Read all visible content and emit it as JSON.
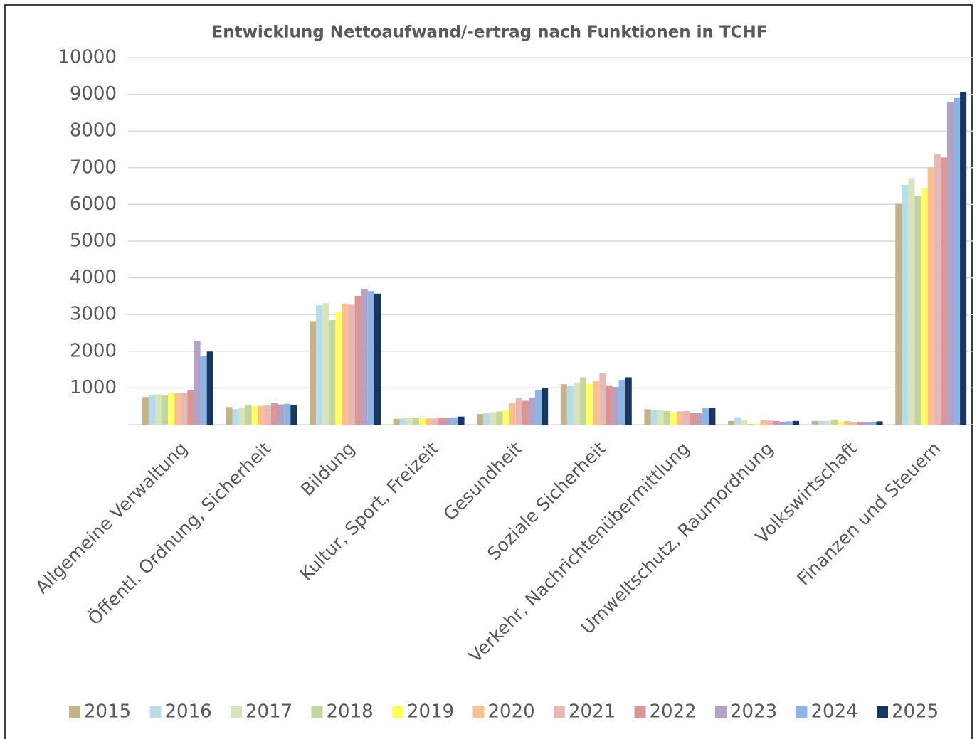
{
  "chart_data": {
    "type": "bar",
    "title": "Entwicklung Nettoaufwand/-ertrag nach Funktionen in TCHF",
    "categories": [
      "Allgemeine Verwaltung",
      "Öffentl. Ordnung, Sicherheit",
      "Bildung",
      "Kultur, Sport, Freizeit",
      "Gesundheit",
      "Soziale Sicherheit",
      "Verkehr, Nachrichtenübermittlung",
      "Umweltschutz, Raumordnung",
      "Volkswirtschaft",
      "Finanzen und Steuern"
    ],
    "series": [
      {
        "name": "2015",
        "color": "#c4b28a",
        "values": [
          750,
          480,
          2800,
          160,
          290,
          1100,
          420,
          100,
          100,
          6020
        ]
      },
      {
        "name": "2016",
        "color": "#b7dde8",
        "values": [
          810,
          420,
          3250,
          170,
          310,
          1050,
          400,
          200,
          100,
          6530
        ]
      },
      {
        "name": "2017",
        "color": "#d7e4bd",
        "values": [
          820,
          470,
          3310,
          180,
          340,
          1150,
          400,
          130,
          100,
          6720
        ]
      },
      {
        "name": "2018",
        "color": "#c3d69b",
        "values": [
          800,
          540,
          2850,
          190,
          360,
          1290,
          370,
          20,
          140,
          6240
        ]
      },
      {
        "name": "2019",
        "color": "#ffff66",
        "values": [
          870,
          500,
          3060,
          170,
          410,
          1110,
          340,
          20,
          80,
          6430
        ]
      },
      {
        "name": "2020",
        "color": "#fac090",
        "values": [
          850,
          510,
          3300,
          170,
          580,
          1180,
          360,
          120,
          100,
          7010
        ]
      },
      {
        "name": "2021",
        "color": "#e6b9b8",
        "values": [
          860,
          520,
          3270,
          170,
          720,
          1400,
          370,
          110,
          70,
          7370
        ]
      },
      {
        "name": "2022",
        "color": "#d99694",
        "values": [
          940,
          580,
          3510,
          190,
          650,
          1070,
          310,
          100,
          80,
          7280
        ]
      },
      {
        "name": "2023",
        "color": "#b3a2c7",
        "values": [
          2280,
          550,
          3700,
          180,
          740,
          1030,
          330,
          60,
          80,
          8800
        ]
      },
      {
        "name": "2024",
        "color": "#8eb4e3",
        "values": [
          1860,
          570,
          3640,
          200,
          950,
          1220,
          460,
          90,
          80,
          8900
        ]
      },
      {
        "name": "2025",
        "color": "#17375e",
        "values": [
          1990,
          540,
          3570,
          220,
          990,
          1290,
          450,
          100,
          90,
          9060
        ]
      }
    ],
    "ylim": [
      0,
      10000
    ],
    "yticks": [
      1000,
      2000,
      3000,
      4000,
      5000,
      6000,
      7000,
      8000,
      9000,
      10000
    ],
    "grid": true,
    "legend": "bottom"
  }
}
